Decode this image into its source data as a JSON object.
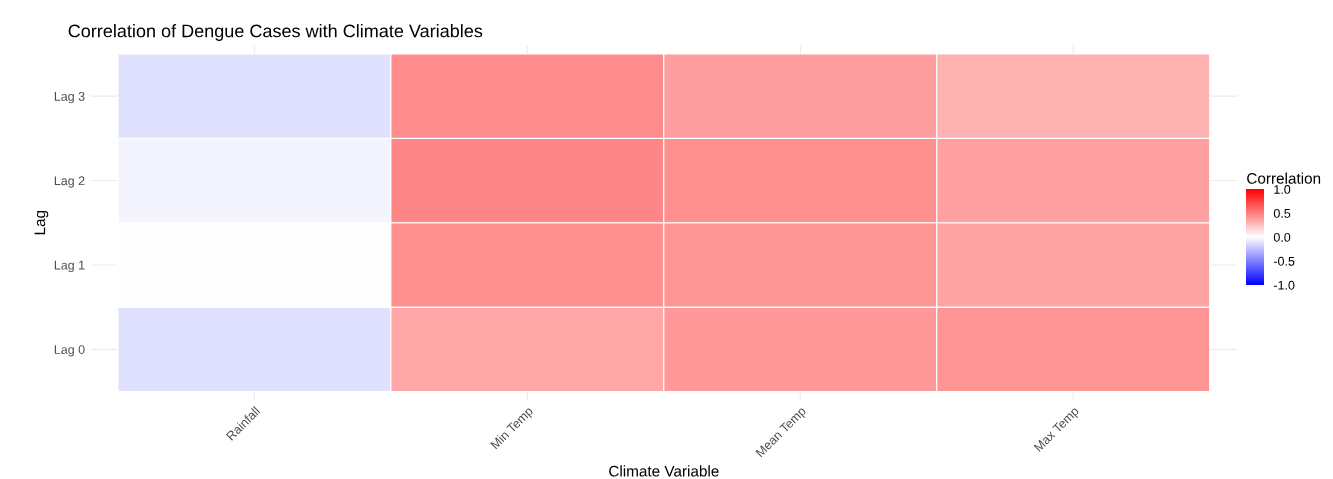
{
  "chart_data": {
    "type": "heatmap",
    "title": "Correlation of Dengue Cases with Climate Variables",
    "xlabel": "Climate Variable",
    "ylabel": "Lag",
    "clabel": "Correlation",
    "categories": [
      "Rainfall",
      "Min Temp",
      "Mean Temp",
      "Max Temp"
    ],
    "y_categories": [
      "Lag 3",
      "Lag 2",
      "Lag 1",
      "Lag 0"
    ],
    "cells": [
      [
        -0.12,
        0.45,
        0.38,
        0.3
      ],
      [
        -0.04,
        0.47,
        0.43,
        0.37
      ],
      [
        0.0,
        0.43,
        0.41,
        0.36
      ],
      [
        -0.12,
        0.35,
        0.4,
        0.42
      ]
    ],
    "clim": [
      -1,
      1
    ],
    "cticks": [
      {
        "value": 1,
        "label": "1.0"
      },
      {
        "value": 0.5,
        "label": "0.5"
      },
      {
        "value": 0,
        "label": "0.0"
      },
      {
        "value": -0.5,
        "label": "-0.5"
      },
      {
        "value": -1,
        "label": "-1.0"
      }
    ],
    "grid": true
  }
}
